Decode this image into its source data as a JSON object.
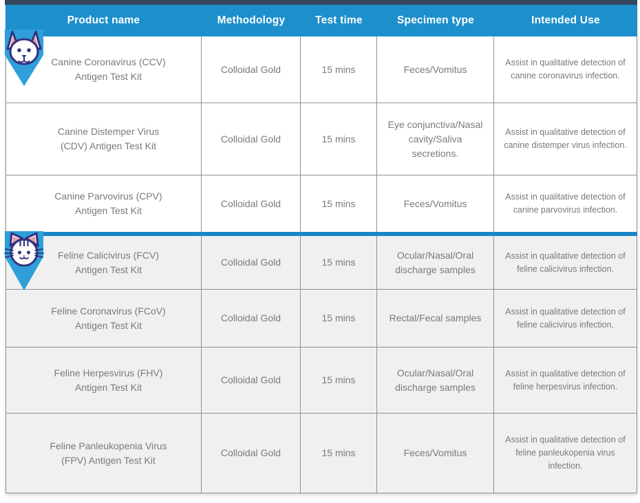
{
  "header": {
    "columns": [
      "Product name",
      "Methodology",
      "Test time",
      "Specimen type",
      "Intended Use"
    ]
  },
  "sections": [
    {
      "id": "canine",
      "icon": "dog-in-arrow-icon",
      "rows": [
        {
          "product": "Canine Coronavirus (CCV) Antigen Test Kit",
          "methodology": "Colloidal Gold",
          "test_time": "15 mins",
          "specimen": "Feces/Vomitus",
          "intended_use": "Assist in qualitative detection of canine coronavirus infection."
        },
        {
          "product": "Canine Distemper Virus (CDV) Antigen Test Kit",
          "methodology": "Colloidal Gold",
          "test_time": "15 mins",
          "specimen": "Eye conjunctiva/Nasal cavity/Saliva secretions.",
          "intended_use": "Assist in qualitative detection of canine distemper virus infection."
        },
        {
          "product": "Canine Parvovirus (CPV) Antigen Test Kit",
          "methodology": "Colloidal Gold",
          "test_time": "15 mins",
          "specimen": "Feces/Vomitus",
          "intended_use": "Assist in qualitative detection of canine parvovirus infection."
        }
      ]
    },
    {
      "id": "feline",
      "icon": "cat-in-arrow-icon",
      "rows": [
        {
          "product": "Feline Calicivirus (FCV) Antigen Test Kit",
          "methodology": "Colloidal Gold",
          "test_time": "15 mins",
          "specimen": "Ocular/Nasal/Oral discharge samples",
          "intended_use": "Assist in qualitative detection of feline calicivirus infection."
        },
        {
          "product": "Feline Coronavirus (FCoV) Antigen Test Kit",
          "methodology": "Colloidal Gold",
          "test_time": "15 mins",
          "specimen": "Rectal/Fecal samples",
          "intended_use": "Assist in qualitative detection of feline calicivirus infection."
        },
        {
          "product": "Feline Herpesvirus (FHV) Antigen Test Kit",
          "methodology": "Colloidal Gold",
          "test_time": "15 mins",
          "specimen": "Ocular/Nasal/Oral discharge samples",
          "intended_use": "Assist in qualitative detection of feline herpesvirus infection."
        },
        {
          "product": "Feline Panleukopenia Virus (FPV) Antigen Test Kit",
          "methodology": "Colloidal Gold",
          "test_time": "15 mins",
          "specimen": "Feces/Vomitus",
          "intended_use": "Assist in qualitative detection of feline panleukopenia virus infection."
        }
      ]
    }
  ],
  "colors": {
    "header_bg": "#1d8fcb",
    "divider": "#1a86c9",
    "top_strip": "#33485c",
    "feline_row_bg": "#f0f0f0",
    "canine_row_bg": "#ffffff",
    "border": "#8f8f8f",
    "body_text": "#7a7a7a",
    "header_text": "#ffffff",
    "icon_arrow": "#2e9fd9",
    "icon_outline": "#32327e",
    "icon_inner_ear": "#e89aa4",
    "icon_nose_pink": "#d97b8e"
  }
}
